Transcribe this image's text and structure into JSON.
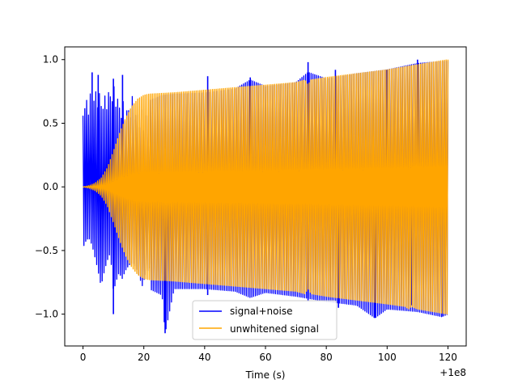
{
  "chart_data": {
    "type": "line",
    "title": "",
    "xlabel": "Time (s)",
    "ylabel": "",
    "x_offset_label": "+1e8",
    "xlim": [
      -6,
      126
    ],
    "ylim": [
      -1.25,
      1.1
    ],
    "xticks": [
      0,
      20,
      40,
      60,
      80,
      100,
      120
    ],
    "xtick_labels": [
      "0",
      "20",
      "40",
      "60",
      "80",
      "100",
      "120"
    ],
    "yticks": [
      -1.0,
      -0.5,
      0.0,
      0.5,
      1.0
    ],
    "ytick_labels": [
      "−1.0",
      "−0.5",
      "0.0",
      "0.5",
      "1.0"
    ],
    "grid": false,
    "legend_position": "bottom-center",
    "series": [
      {
        "name": "signal+noise",
        "color": "#0000ff",
        "upper": [
          [
            0,
            0.72
          ],
          [
            1,
            0.76
          ],
          [
            2,
            0.74
          ],
          [
            3,
            0.82
          ],
          [
            5,
            0.8
          ],
          [
            7,
            0.75
          ],
          [
            9,
            0.84
          ],
          [
            11,
            0.8
          ],
          [
            13,
            0.68
          ],
          [
            16,
            0.72
          ],
          [
            18,
            0.66
          ],
          [
            20,
            0.6
          ],
          [
            22,
            0.68
          ],
          [
            26,
            0.72
          ],
          [
            30,
            0.73
          ],
          [
            40,
            0.74
          ],
          [
            50,
            0.77
          ],
          [
            55,
            0.84
          ],
          [
            60,
            0.79
          ],
          [
            70,
            0.82
          ],
          [
            74,
            0.9
          ],
          [
            80,
            0.85
          ],
          [
            90,
            0.89
          ],
          [
            100,
            0.92
          ],
          [
            110,
            0.97
          ],
          [
            120,
            0.99
          ]
        ],
        "lower": [
          [
            0,
            -0.55
          ],
          [
            1,
            -0.56
          ],
          [
            2,
            -0.58
          ],
          [
            4,
            -0.7
          ],
          [
            6,
            -0.78
          ],
          [
            9,
            -0.7
          ],
          [
            10,
            -1.0
          ],
          [
            12,
            -0.72
          ],
          [
            15,
            -0.78
          ],
          [
            20,
            -0.78
          ],
          [
            26,
            -0.85
          ],
          [
            27,
            -1.15
          ],
          [
            30,
            -0.8
          ],
          [
            40,
            -0.8
          ],
          [
            50,
            -0.82
          ],
          [
            55,
            -0.87
          ],
          [
            60,
            -0.83
          ],
          [
            70,
            -0.86
          ],
          [
            80,
            -0.9
          ],
          [
            90,
            -0.93
          ],
          [
            96,
            -1.03
          ],
          [
            100,
            -0.96
          ],
          [
            110,
            -0.98
          ],
          [
            118,
            -1.02
          ],
          [
            120,
            -1.0
          ]
        ],
        "spikes": [
          [
            3,
            0.9
          ],
          [
            5,
            0.88
          ],
          [
            10,
            0.85
          ],
          [
            13,
            0.88
          ],
          [
            27,
            -1.15
          ],
          [
            10,
            -1.0
          ],
          [
            41,
            0.87
          ],
          [
            41,
            -0.85
          ],
          [
            55,
            0.86
          ],
          [
            74,
            0.98
          ],
          [
            74,
            -0.9
          ],
          [
            83,
            0.92
          ],
          [
            84,
            -0.95
          ],
          [
            96,
            -1.03
          ],
          [
            100,
            0.92
          ],
          [
            110,
            1.0
          ],
          [
            108,
            -0.93
          ],
          [
            118,
            -1.02
          ]
        ]
      },
      {
        "name": "unwhitened signal",
        "color": "#ffa500",
        "upper": [
          [
            0,
            0.0
          ],
          [
            2,
            0.01
          ],
          [
            4,
            0.03
          ],
          [
            6,
            0.07
          ],
          [
            8,
            0.15
          ],
          [
            10,
            0.28
          ],
          [
            12,
            0.42
          ],
          [
            14,
            0.54
          ],
          [
            16,
            0.63
          ],
          [
            18,
            0.69
          ],
          [
            20,
            0.72
          ],
          [
            22,
            0.73
          ],
          [
            30,
            0.74
          ],
          [
            40,
            0.76
          ],
          [
            50,
            0.78
          ],
          [
            60,
            0.8
          ],
          [
            70,
            0.82
          ],
          [
            73,
            0.84
          ],
          [
            74,
            0.8
          ],
          [
            75,
            0.84
          ],
          [
            80,
            0.86
          ],
          [
            90,
            0.89
          ],
          [
            100,
            0.92
          ],
          [
            110,
            0.96
          ],
          [
            120,
            1.0
          ]
        ],
        "lower": [
          [
            0,
            0.0
          ],
          [
            2,
            -0.01
          ],
          [
            4,
            -0.03
          ],
          [
            6,
            -0.07
          ],
          [
            8,
            -0.15
          ],
          [
            10,
            -0.28
          ],
          [
            12,
            -0.42
          ],
          [
            14,
            -0.54
          ],
          [
            16,
            -0.63
          ],
          [
            18,
            -0.69
          ],
          [
            20,
            -0.72
          ],
          [
            22,
            -0.73
          ],
          [
            30,
            -0.74
          ],
          [
            40,
            -0.76
          ],
          [
            50,
            -0.78
          ],
          [
            60,
            -0.8
          ],
          [
            70,
            -0.82
          ],
          [
            73,
            -0.84
          ],
          [
            74,
            -0.8
          ],
          [
            75,
            -0.84
          ],
          [
            80,
            -0.86
          ],
          [
            90,
            -0.89
          ],
          [
            100,
            -0.92
          ],
          [
            106,
            -0.94
          ],
          [
            107,
            -0.96
          ],
          [
            108,
            -0.94
          ],
          [
            110,
            -0.96
          ],
          [
            120,
            -1.0
          ]
        ]
      }
    ]
  }
}
